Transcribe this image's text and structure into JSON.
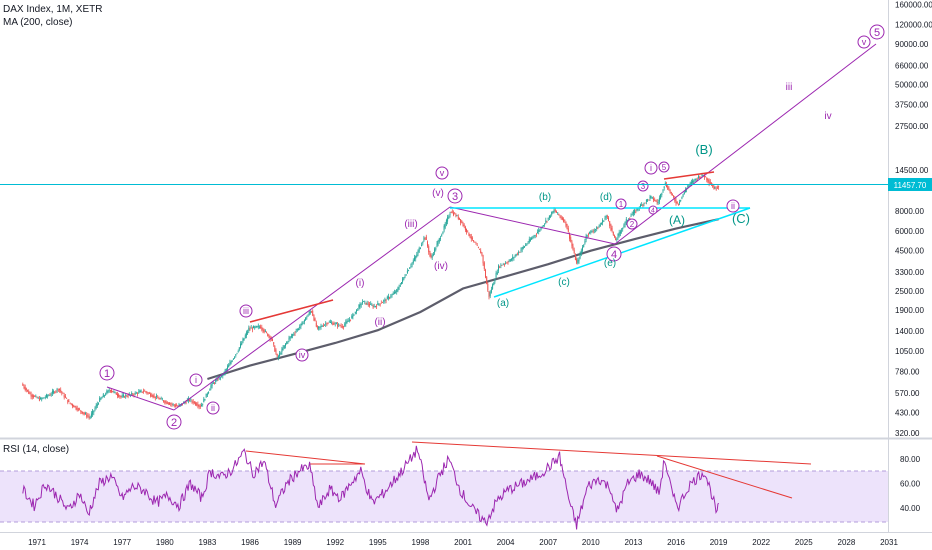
{
  "panes": {
    "price_title": "DAX Index, 1M, XETR",
    "price_study": "MA (200, close)",
    "rsi_title": "RSI (14, close)"
  },
  "last_price": "11457.70",
  "colors": {
    "candle_up": "#26a69a",
    "candle_down": "#ef5350",
    "ma": "#5d5d6b",
    "wave": "#9c27b0",
    "trend_cyan": "#00e5ff",
    "red_line": "#e53935",
    "rsi_line": "#9c27b0",
    "rsi_band": "#ede3fb",
    "price_line": "#00bcd4",
    "price_tag": "#00bcd4"
  },
  "chart_data": [
    {
      "type": "candlestick",
      "scale": "log",
      "title": "DAX Index, 1M, XETR",
      "study": "MA (200, close)",
      "x_ticks": [
        "1971",
        "1974",
        "1977",
        "1980",
        "1983",
        "1986",
        "1989",
        "1992",
        "1995",
        "1998",
        "2001",
        "2004",
        "2007",
        "2010",
        "2013",
        "2016",
        "2019",
        "2022",
        "2025",
        "2028",
        "2031"
      ],
      "y_ticks": [
        320,
        430,
        570,
        780,
        1050,
        1400,
        1900,
        2500,
        3300,
        4500,
        6000,
        8000,
        14500,
        27500,
        37500,
        50000,
        66000,
        90000,
        120000,
        160000
      ],
      "y_tick_labels": [
        "320.00",
        "430.00",
        "570.00",
        "780.00",
        "1050.00",
        "1400.00",
        "1900.00",
        "2500.00",
        "3300.00",
        "4500.00",
        "6000.00",
        "8000.00",
        "14500.00",
        "27500.00",
        "37500.00",
        "50000.00",
        "66000.00",
        "90000.00",
        "120000.00",
        "160000.00"
      ],
      "price_path": [
        [
          1970.0,
          650
        ],
        [
          1970.6,
          560
        ],
        [
          1971.3,
          520
        ],
        [
          1972.0,
          560
        ],
        [
          1972.6,
          610
        ],
        [
          1973.3,
          500
        ],
        [
          1974.0,
          450
        ],
        [
          1974.8,
          400
        ],
        [
          1975.5,
          520
        ],
        [
          1976.2,
          600
        ],
        [
          1977.0,
          540
        ],
        [
          1977.8,
          560
        ],
        [
          1978.6,
          590
        ],
        [
          1979.4,
          540
        ],
        [
          1980.2,
          500
        ],
        [
          1981.0,
          470
        ],
        [
          1981.8,
          520
        ],
        [
          1982.6,
          470
        ],
        [
          1983.4,
          650
        ],
        [
          1984.2,
          750
        ],
        [
          1985.2,
          1050
        ],
        [
          1986.0,
          1450
        ],
        [
          1986.8,
          1500
        ],
        [
          1987.6,
          1250
        ],
        [
          1988.0,
          950
        ],
        [
          1988.8,
          1250
        ],
        [
          1989.6,
          1500
        ],
        [
          1990.4,
          1900
        ],
        [
          1990.8,
          1450
        ],
        [
          1991.6,
          1600
        ],
        [
          1992.6,
          1500
        ],
        [
          1993.2,
          1700
        ],
        [
          1994.0,
          2150
        ],
        [
          1994.8,
          2000
        ],
        [
          1995.6,
          2200
        ],
        [
          1996.4,
          2500
        ],
        [
          1997.2,
          3400
        ],
        [
          1997.8,
          4200
        ],
        [
          1998.4,
          5600
        ],
        [
          1998.8,
          4000
        ],
        [
          1999.6,
          5800
        ],
        [
          2000.2,
          8000
        ],
        [
          2000.8,
          7200
        ],
        [
          2001.6,
          5500
        ],
        [
          2002.4,
          4300
        ],
        [
          2002.9,
          2300
        ],
        [
          2003.6,
          3600
        ],
        [
          2004.4,
          3900
        ],
        [
          2005.4,
          4800
        ],
        [
          2006.4,
          6000
        ],
        [
          2007.5,
          8100
        ],
        [
          2008.3,
          6800
        ],
        [
          2009.1,
          3700
        ],
        [
          2009.8,
          5700
        ],
        [
          2010.6,
          6300
        ],
        [
          2011.2,
          7500
        ],
        [
          2011.8,
          5200
        ],
        [
          2012.6,
          7000
        ],
        [
          2013.5,
          8500
        ],
        [
          2014.3,
          9800
        ],
        [
          2014.8,
          9000
        ],
        [
          2015.3,
          12000
        ],
        [
          2015.9,
          9700
        ],
        [
          2016.2,
          8800
        ],
        [
          2016.9,
          11500
        ],
        [
          2017.6,
          13000
        ],
        [
          2018.0,
          13500
        ],
        [
          2018.4,
          12300
        ],
        [
          2018.8,
          11000
        ],
        [
          2019.0,
          11457.7
        ]
      ],
      "ma200_path": [
        [
          1983.0,
          700
        ],
        [
          1986.0,
          850
        ],
        [
          1989.0,
          1000
        ],
        [
          1992.0,
          1180
        ],
        [
          1995.0,
          1420
        ],
        [
          1998.0,
          1850
        ],
        [
          2001.0,
          2600
        ],
        [
          2004.0,
          3100
        ],
        [
          2007.0,
          3700
        ],
        [
          2010.0,
          4500
        ],
        [
          2013.0,
          5300
        ],
        [
          2016.0,
          6200
        ],
        [
          2019.0,
          7100
        ]
      ],
      "last_value": 11457.7,
      "wave_labels_circled": [
        "1",
        "2",
        "3",
        "4",
        "5",
        "i",
        "ii",
        "iii",
        "iv",
        "v",
        "ii"
      ],
      "wave_labels_plain": [
        "(iii)",
        "(iv)",
        "(v)",
        "(i)",
        "(ii)",
        "(a)",
        "(b)",
        "(c)",
        "(e)",
        "(A)",
        "(B)",
        "(C)",
        "iii",
        "iv"
      ]
    },
    {
      "type": "line",
      "title": "RSI (14, close)",
      "ylim": [
        20,
        100
      ],
      "y_ticks": [
        40,
        60,
        80
      ],
      "y_tick_labels": [
        "40.00",
        "60.00",
        "80.00"
      ],
      "bands": [
        30,
        70
      ],
      "values_path": [
        [
          1970.0,
          55
        ],
        [
          1970.8,
          42
        ],
        [
          1971.6,
          60
        ],
        [
          1972.4,
          50
        ],
        [
          1973.2,
          38
        ],
        [
          1974.0,
          52
        ],
        [
          1974.6,
          35
        ],
        [
          1975.4,
          60
        ],
        [
          1976.2,
          66
        ],
        [
          1977.0,
          48
        ],
        [
          1977.8,
          58
        ],
        [
          1978.6,
          54
        ],
        [
          1979.4,
          44
        ],
        [
          1980.2,
          50
        ],
        [
          1981.0,
          42
        ],
        [
          1981.8,
          60
        ],
        [
          1982.6,
          48
        ],
        [
          1983.2,
          70
        ],
        [
          1984.0,
          65
        ],
        [
          1984.8,
          72
        ],
        [
          1985.6,
          86
        ],
        [
          1986.2,
          68
        ],
        [
          1987.0,
          78
        ],
        [
          1987.8,
          42
        ],
        [
          1988.6,
          60
        ],
        [
          1989.4,
          70
        ],
        [
          1990.2,
          74
        ],
        [
          1990.8,
          40
        ],
        [
          1991.6,
          55
        ],
        [
          1992.4,
          48
        ],
        [
          1993.2,
          62
        ],
        [
          1993.8,
          70
        ],
        [
          1994.6,
          44
        ],
        [
          1995.4,
          52
        ],
        [
          1996.4,
          66
        ],
        [
          1997.2,
          78
        ],
        [
          1997.8,
          88
        ],
        [
          1998.6,
          46
        ],
        [
          1999.4,
          68
        ],
        [
          2000.0,
          80
        ],
        [
          2000.8,
          55
        ],
        [
          2001.6,
          40
        ],
        [
          2002.6,
          28
        ],
        [
          2003.4,
          46
        ],
        [
          2004.2,
          55
        ],
        [
          2005.2,
          60
        ],
        [
          2006.2,
          66
        ],
        [
          2007.2,
          75
        ],
        [
          2007.8,
          82
        ],
        [
          2008.6,
          40
        ],
        [
          2009.0,
          26
        ],
        [
          2009.8,
          58
        ],
        [
          2010.6,
          64
        ],
        [
          2011.4,
          56
        ],
        [
          2011.8,
          36
        ],
        [
          2012.6,
          60
        ],
        [
          2013.4,
          68
        ],
        [
          2014.2,
          62
        ],
        [
          2014.8,
          52
        ],
        [
          2015.2,
          80
        ],
        [
          2015.8,
          48
        ],
        [
          2016.2,
          42
        ],
        [
          2016.9,
          58
        ],
        [
          2017.6,
          66
        ],
        [
          2018.0,
          70
        ],
        [
          2018.5,
          52
        ],
        [
          2018.9,
          34
        ],
        [
          2019.0,
          44
        ]
      ]
    }
  ]
}
